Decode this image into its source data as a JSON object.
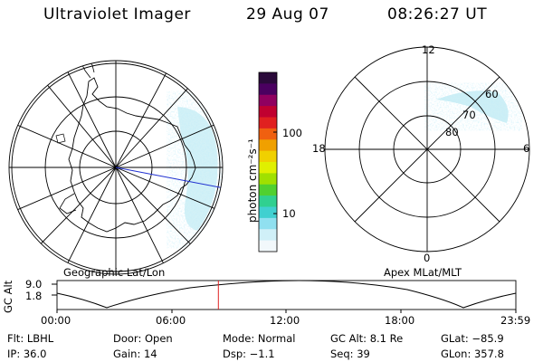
{
  "header": {
    "instrument": "Ultraviolet Imager",
    "date": "29 Aug 07",
    "time": "08:26:27 UT"
  },
  "colorbar": {
    "unit_label": "photon cm⁻²s⁻¹",
    "tick_100": "100",
    "tick_10": "10",
    "colors_top_to_bottom": [
      "#2a0a3a",
      "#4a0060",
      "#900060",
      "#c00030",
      "#e02020",
      "#f06010",
      "#f0a000",
      "#f0d000",
      "#e0f000",
      "#a0e000",
      "#50d030",
      "#30d090",
      "#40d0d0",
      "#90e0f0",
      "#d0f0f8",
      "#f2f8fb"
    ]
  },
  "geo_map": {
    "label": "Geographic Lat/Lon"
  },
  "apex_map": {
    "label": "Apex MLat/MLT",
    "mlt_top": "12",
    "mlt_left": "18",
    "mlt_right": "6",
    "mlt_bottom": "0",
    "lat_60": "60",
    "lat_70": "70",
    "lat_80": "80"
  },
  "timeline": {
    "ylabel": "GC Alt",
    "ytick_top": "9.0",
    "ytick_bottom": "1.8",
    "xticks": [
      "00:00",
      "06:00",
      "12:00",
      "18:00",
      "23:59"
    ],
    "marker_time_hours": 8.44
  },
  "info": {
    "flt": "Flt: LBHL",
    "door": "Door: Open",
    "mode": "Mode: Normal",
    "gcalt": "GC Alt: 8.1 Re",
    "glat": "GLat: −85.9",
    "ip": "IP: 36.0",
    "gain": "Gain: 14",
    "dsp": "Dsp:    −1.1",
    "seq": "Seq: 39",
    "glon": "GLon: 357.8"
  }
}
